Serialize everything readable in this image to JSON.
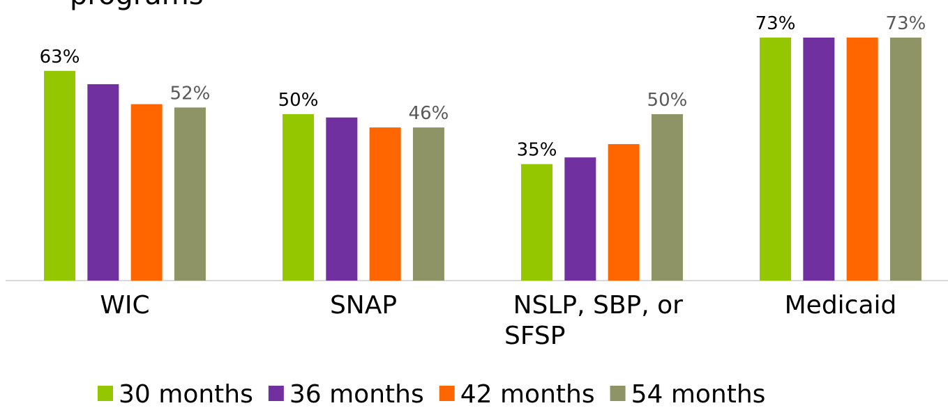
{
  "chart_data": {
    "type": "bar",
    "title": "programs",
    "categories": [
      "WIC",
      "SNAP",
      "NSLP, SBP, or SFSP",
      "Medicaid"
    ],
    "series": [
      {
        "name": "30 months",
        "color": "#95c700",
        "label_color": "#000000",
        "values": [
          63,
          50,
          35,
          73
        ],
        "value_labels": [
          "63%",
          "50%",
          "35%",
          "73%"
        ]
      },
      {
        "name": "36 months",
        "color": "#7030a0",
        "values": [
          59,
          49,
          37,
          73
        ],
        "value_labels": [
          null,
          null,
          null,
          null
        ]
      },
      {
        "name": "42 months",
        "color": "#ff6600",
        "values": [
          53,
          46,
          41,
          73
        ],
        "value_labels": [
          null,
          null,
          null,
          null
        ]
      },
      {
        "name": "54 months",
        "color": "#8f9467",
        "label_color": "#595959",
        "values": [
          52,
          46,
          50,
          73
        ],
        "value_labels": [
          "52%",
          "46%",
          "50%",
          "73%"
        ]
      }
    ],
    "ylim": [
      0,
      80
    ],
    "grid": false,
    "legend": "bottom"
  }
}
